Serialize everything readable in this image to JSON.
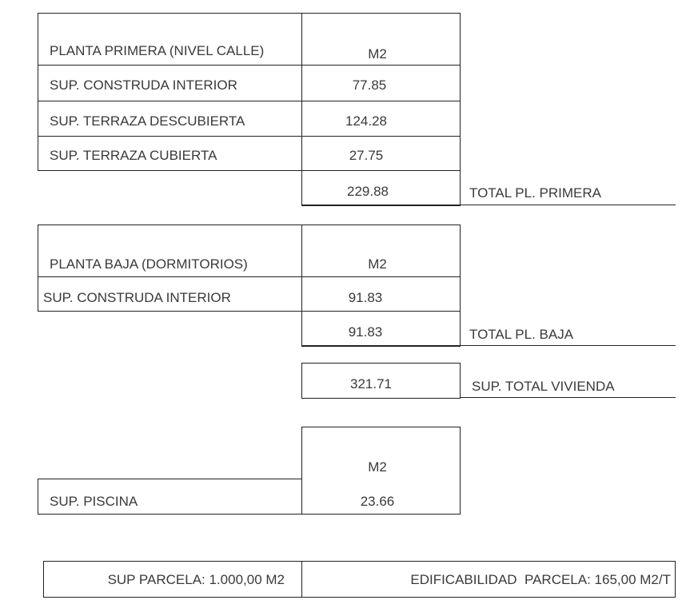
{
  "planta_primera": {
    "header": "PLANTA PRIMERA (NIVEL CALLE)",
    "unit": "M2",
    "rows": [
      {
        "label": "SUP. CONSTRUDA INTERIOR",
        "value": "77.85"
      },
      {
        "label": "SUP. TERRAZA DESCUBIERTA",
        "value": "124.28"
      },
      {
        "label": "SUP. TERRAZA CUBIERTA",
        "value": "27.75"
      }
    ],
    "total_value": "229.88",
    "total_label": "TOTAL PL. PRIMERA"
  },
  "planta_baja": {
    "header": "PLANTA BAJA (DORMITORIOS)",
    "unit": "M2",
    "rows": [
      {
        "label": "SUP. CONSTRUDA INTERIOR",
        "value": "91.83"
      }
    ],
    "total_value": "91.83",
    "total_label": "TOTAL PL. BAJA"
  },
  "vivienda": {
    "value": "321.71",
    "label": "SUP. TOTAL VIVIENDA"
  },
  "piscina": {
    "unit": "M2",
    "label": "SUP. PISCINA",
    "value": "23.66"
  },
  "parcela": {
    "superficie": "SUP PARCELA: 1.000,00 M2",
    "edificabilidad": "EDIFICABILIDAD  PARCELA: 165,00 M2/T"
  }
}
